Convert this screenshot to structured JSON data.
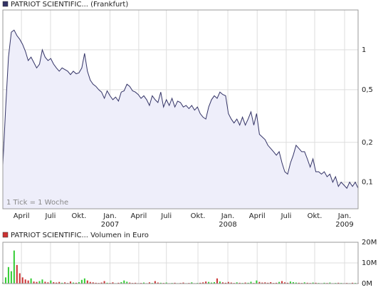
{
  "chart_data": [
    {
      "type": "area",
      "log_y": true,
      "grid": true,
      "annotation": "1 Tick = 1 Woche",
      "fill": "#eeeefa",
      "series": [
        {
          "name": "PATRIOT SCIENTIFIC... (Frankfurt)",
          "color": "#333366",
          "values": [
            0.135,
            0.37,
            0.88,
            1.36,
            1.41,
            1.28,
            1.2,
            1.1,
            0.975,
            0.83,
            0.88,
            0.8,
            0.73,
            0.78,
            1.0,
            0.88,
            0.83,
            0.86,
            0.78,
            0.73,
            0.69,
            0.73,
            0.71,
            0.69,
            0.65,
            0.69,
            0.66,
            0.67,
            0.73,
            0.94,
            0.69,
            0.59,
            0.55,
            0.53,
            0.5,
            0.48,
            0.43,
            0.49,
            0.45,
            0.42,
            0.44,
            0.41,
            0.48,
            0.49,
            0.55,
            0.53,
            0.49,
            0.48,
            0.46,
            0.43,
            0.45,
            0.42,
            0.38,
            0.45,
            0.42,
            0.4,
            0.48,
            0.37,
            0.42,
            0.38,
            0.43,
            0.37,
            0.41,
            0.4,
            0.37,
            0.38,
            0.36,
            0.38,
            0.35,
            0.37,
            0.33,
            0.31,
            0.3,
            0.37,
            0.42,
            0.45,
            0.43,
            0.48,
            0.46,
            0.45,
            0.33,
            0.3,
            0.28,
            0.3,
            0.27,
            0.31,
            0.27,
            0.3,
            0.34,
            0.27,
            0.33,
            0.23,
            0.22,
            0.21,
            0.19,
            0.18,
            0.17,
            0.16,
            0.17,
            0.14,
            0.12,
            0.115,
            0.14,
            0.16,
            0.19,
            0.18,
            0.17,
            0.17,
            0.15,
            0.13,
            0.15,
            0.12,
            0.12,
            0.115,
            0.12,
            0.11,
            0.115,
            0.1,
            0.11,
            0.093,
            0.1,
            0.095,
            0.09,
            0.1,
            0.093,
            0.1,
            0.09
          ]
        }
      ],
      "xlim": [
        0,
        126
      ],
      "ylim": [
        0.063,
        2
      ],
      "yticks": [
        {
          "value": 1,
          "label": "1"
        },
        {
          "value": 0.5,
          "label": "0,5"
        },
        {
          "value": 0.2,
          "label": "0,2"
        },
        {
          "value": 0.1,
          "label": "0,1"
        }
      ],
      "xticks": [
        {
          "value": 6.6,
          "label": "April"
        },
        {
          "value": 16.9,
          "label": "Juli"
        },
        {
          "value": 27,
          "label": "Okt."
        },
        {
          "value": 38,
          "label": "Jan."
        },
        {
          "value": 48.2,
          "label": "April"
        },
        {
          "value": 58,
          "label": "Juli"
        },
        {
          "value": 69.2,
          "label": "Okt."
        },
        {
          "value": 79.8,
          "label": "Jan."
        },
        {
          "value": 90.2,
          "label": "April"
        },
        {
          "value": 100.5,
          "label": "Juli"
        },
        {
          "value": 110.6,
          "label": "Okt."
        },
        {
          "value": 121.2,
          "label": "Jan."
        }
      ],
      "year_labels": [
        {
          "value": 38,
          "label": "2007"
        },
        {
          "value": 79.8,
          "label": "2008"
        },
        {
          "value": 121.2,
          "label": "2009"
        }
      ]
    },
    {
      "type": "bar",
      "grid": true,
      "up_color": "#33cc33",
      "down_color": "#cc3333",
      "series": [
        {
          "name": "PATRIOT SCIENTIFIC... Volumen in Euro",
          "color": "#cc3333",
          "values": [
            500000,
            3000000,
            8000000,
            6000000,
            16000000,
            9000000,
            5000000,
            3000000,
            2000000,
            1500000,
            2500000,
            1000000,
            800000,
            1200000,
            2000000,
            900000,
            600000,
            1500000,
            700000,
            500000,
            800000,
            400000,
            600000,
            300000,
            1000000,
            500000,
            400000,
            700000,
            1800000,
            2500000,
            1500000,
            800000,
            600000,
            400000,
            300000,
            500000,
            1200000,
            400000,
            300000,
            600000,
            200000,
            400000,
            700000,
            1500000,
            900000,
            500000,
            300000,
            400000,
            200000,
            300000,
            500000,
            200000,
            600000,
            300000,
            1200000,
            500000,
            400000,
            300000,
            500000,
            200000,
            300000,
            400000,
            200000,
            300000,
            500000,
            200000,
            300000,
            600000,
            200000,
            300000,
            400000,
            600000,
            1000000,
            800000,
            500000,
            700000,
            2500000,
            1000000,
            600000,
            400000,
            800000,
            500000,
            300000,
            600000,
            400000,
            300000,
            500000,
            400000,
            900000,
            300000,
            1500000,
            800000,
            500000,
            600000,
            400000,
            700000,
            300000,
            400000,
            800000,
            1200000,
            600000,
            400000,
            1000000,
            700000,
            500000,
            400000,
            300000,
            600000,
            400000,
            300000,
            500000,
            400000,
            300000,
            200000,
            400000,
            300000,
            500000,
            200000,
            300000,
            400000,
            300000,
            200000,
            300000,
            200000,
            400000,
            300000,
            200000
          ]
        }
      ],
      "xlim": [
        0,
        126
      ],
      "ylim": [
        0,
        20000000
      ],
      "yticks": [
        {
          "value": 20000000,
          "label": "20M"
        },
        {
          "value": 10000000,
          "label": "10M"
        },
        {
          "value": 0,
          "label": "0M"
        }
      ]
    }
  ]
}
